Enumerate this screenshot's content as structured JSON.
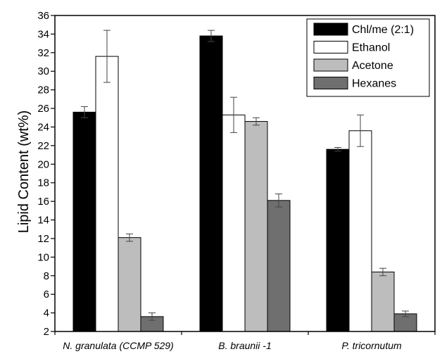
{
  "chart_data": {
    "type": "bar",
    "title": "",
    "xlabel": "",
    "ylabel": "Lipid Content (wt%)",
    "ylim": [
      2,
      36
    ],
    "yticks": [
      2,
      4,
      6,
      8,
      10,
      12,
      14,
      16,
      18,
      20,
      22,
      24,
      26,
      28,
      30,
      32,
      34,
      36
    ],
    "grid": false,
    "legend_position": "top-right",
    "categories": [
      "N. granulata (CCMP 529)",
      "B. braunii -1",
      "P. tricornutum"
    ],
    "series": [
      {
        "name": "Chl/me (2:1)",
        "color": "#000000",
        "values": [
          25.6,
          33.8,
          21.6
        ],
        "errors": [
          0.6,
          0.6,
          0.2
        ]
      },
      {
        "name": "Ethanol",
        "color": "#ffffff",
        "values": [
          31.6,
          25.3,
          23.6
        ],
        "errors": [
          2.8,
          1.9,
          1.7
        ]
      },
      {
        "name": "Acetone",
        "color": "#bdbdbd",
        "values": [
          12.1,
          24.6,
          8.4
        ],
        "errors": [
          0.4,
          0.4,
          0.4
        ]
      },
      {
        "name": "Hexanes",
        "color": "#6f6f6f",
        "values": [
          3.6,
          16.1,
          3.9
        ],
        "errors": [
          0.4,
          0.7,
          0.3
        ]
      }
    ]
  }
}
